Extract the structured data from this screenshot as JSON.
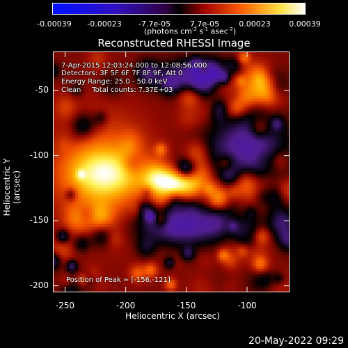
{
  "chart_data": {
    "type": "heatmap",
    "title": "Reconstructed RHESSI Image",
    "xlabel": "Heliocentric X (arcsec)",
    "ylabel": "Heliocentric Y (arcsec)",
    "xlim": [
      -260,
      -65
    ],
    "ylim": [
      -205,
      -20
    ],
    "x_ticks": [
      "-250",
      "-200",
      "-150",
      "-100"
    ],
    "x_tick_values": [
      -250,
      -200,
      -150,
      -100
    ],
    "y_ticks": [
      "-50",
      "-100",
      "-150",
      "-200"
    ],
    "y_tick_values": [
      -50,
      -100,
      -150,
      -200
    ],
    "colorbar": {
      "ticks": [
        "-0.00039",
        "-0.00023",
        "-7.7e-05",
        "7.7e-05",
        "0.00023",
        "0.00039"
      ],
      "range": [
        -0.00039,
        0.00039
      ],
      "unit_text": "(photons cm",
      "unit_exp1": "-2",
      "unit_mid": " s",
      "unit_exp2": "-1",
      "unit_mid2": " asec",
      "unit_exp3": "-2",
      "unit_end": ")"
    },
    "annotations": {
      "time_range": "7-Apr-2015 12:03:24.000 to 12:08:56.000",
      "detectors": "Detectors: 3F 5F 6F 7F 8F 9F, Att 0",
      "energy": "Energy Range: 25.0 - 50.0 keV",
      "method": "Clean     Total counts: 7.37E+03",
      "peak": "Position of Peak = [-156,-121]"
    },
    "peak_position": [
      -156,
      -121
    ],
    "colormap": [
      "#1010ff",
      "#6030a0",
      "#000000",
      "#a01000",
      "#ff6000",
      "#ffff80",
      "#ffffff"
    ]
  },
  "footer": {
    "timestamp": "20-May-2022 09:29"
  }
}
